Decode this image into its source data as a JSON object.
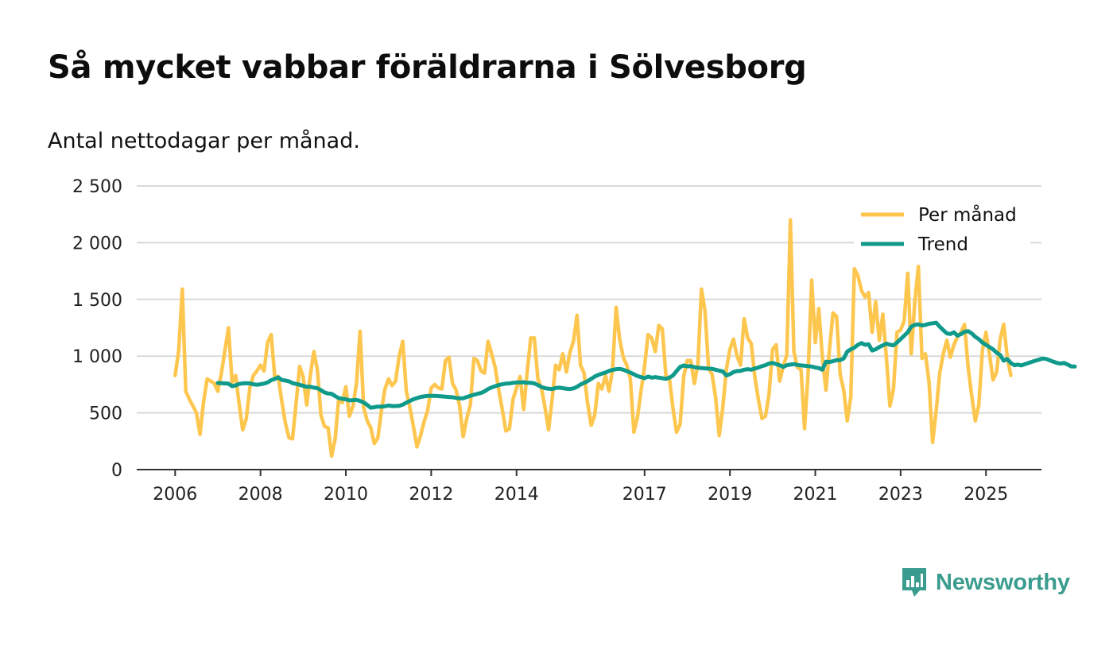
{
  "header": {
    "title": "Så mycket vabbar föräldrarna i Sölvesborg",
    "subtitle": "Antal nettodagar per månad."
  },
  "brand": {
    "name": "Newsworthy",
    "icon": "newsworthy-logo-icon",
    "color": "#3a9c8e"
  },
  "chart_data": {
    "type": "line",
    "title": "Så mycket vabbar föräldrarna i Sölvesborg",
    "subtitle": "Antal nettodagar per månad.",
    "xlabel": "",
    "ylabel": "",
    "x_start": 2006.0,
    "x_step": 0.08333,
    "xlim": [
      2005.1,
      2026.3
    ],
    "ylim": [
      0,
      2500
    ],
    "y_ticks": [
      0,
      500,
      1000,
      1500,
      2000,
      2500
    ],
    "y_tick_labels": [
      "0",
      "500",
      "1 000",
      "1 500",
      "2 000",
      "2 500"
    ],
    "x_ticks": [
      2006,
      2008,
      2010,
      2012,
      2014,
      2017,
      2019,
      2021,
      2023,
      2025
    ],
    "x_tick_labels": [
      "2006",
      "2008",
      "2010",
      "2012",
      "2014",
      "2017",
      "2019",
      "2021",
      "2023",
      "2025"
    ],
    "grid": true,
    "legend_position": "top-right",
    "series": [
      {
        "name": "Per månad",
        "color": "#fdc64e",
        "values": [
          830,
          1050,
          1590,
          690,
          620,
          560,
          500,
          310,
          600,
          800,
          780,
          760,
          690,
          850,
          1050,
          1250,
          770,
          830,
          580,
          350,
          450,
          720,
          830,
          870,
          920,
          870,
          1120,
          1190,
          820,
          820,
          600,
          410,
          280,
          270,
          580,
          910,
          820,
          570,
          830,
          1040,
          880,
          480,
          380,
          370,
          120,
          270,
          630,
          590,
          730,
          470,
          560,
          760,
          1220,
          550,
          430,
          370,
          230,
          280,
          520,
          710,
          800,
          740,
          780,
          1000,
          1130,
          690,
          550,
          380,
          200,
          300,
          420,
          520,
          720,
          750,
          720,
          710,
          960,
          990,
          760,
          700,
          560,
          290,
          450,
          570,
          980,
          960,
          870,
          850,
          1130,
          1020,
          900,
          700,
          530,
          340,
          360,
          620,
          720,
          820,
          530,
          860,
          1160,
          1160,
          800,
          720,
          550,
          350,
          620,
          920,
          880,
          1020,
          860,
          1030,
          1130,
          1360,
          920,
          850,
          580,
          390,
          480,
          760,
          710,
          830,
          690,
          880,
          1430,
          1150,
          990,
          920,
          800,
          330,
          460,
          690,
          910,
          1190,
          1160,
          1040,
          1270,
          1240,
          830,
          800,
          540,
          330,
          400,
          820,
          960,
          960,
          760,
          930,
          1590,
          1400,
          890,
          840,
          630,
          300,
          550,
          880,
          1060,
          1150,
          1000,
          920,
          1330,
          1160,
          1110,
          820,
          620,
          450,
          470,
          660,
          1060,
          1100,
          780,
          910,
          1010,
          2200,
          1040,
          900,
          880,
          360,
          850,
          1670,
          1120,
          1420,
          990,
          700,
          1060,
          1380,
          1350,
          840,
          700,
          430,
          640,
          1770,
          1710,
          1580,
          1520,
          1560,
          1210,
          1480,
          1140,
          1370,
          990,
          560,
          710,
          1210,
          1230,
          1310,
          1730,
          1020,
          1480,
          1790,
          980,
          1020,
          770,
          240,
          520,
          850,
          1020,
          1140,
          990,
          1100,
          1170,
          1210,
          1280,
          900,
          650,
          430,
          570,
          1050,
          1210,
          1020,
          790,
          860,
          1150,
          1280,
          990,
          830
        ]
      },
      {
        "name": "Trend",
        "color": "#0f9a8b",
        "start_index": 12,
        "values": [
          763,
          762,
          760,
          757,
          735,
          742,
          755,
          760,
          762,
          760,
          752,
          748,
          752,
          758,
          768,
          788,
          800,
          812,
          790,
          785,
          778,
          762,
          755,
          748,
          738,
          730,
          730,
          722,
          718,
          700,
          680,
          670,
          668,
          648,
          630,
          625,
          620,
          610,
          612,
          615,
          605,
          592,
          570,
          545,
          550,
          555,
          555,
          558,
          565,
          560,
          560,
          562,
          572,
          590,
          605,
          620,
          630,
          640,
          645,
          650,
          650,
          650,
          648,
          645,
          642,
          640,
          638,
          632,
          628,
          628,
          640,
          650,
          660,
          668,
          675,
          690,
          710,
          725,
          735,
          745,
          752,
          758,
          760,
          765,
          768,
          768,
          770,
          765,
          765,
          760,
          745,
          728,
          718,
          712,
          710,
          720,
          722,
          718,
          712,
          710,
          716,
          730,
          750,
          765,
          780,
          800,
          820,
          835,
          845,
          855,
          870,
          878,
          885,
          888,
          880,
          868,
          855,
          840,
          825,
          815,
          805,
          820,
          810,
          815,
          810,
          805,
          800,
          810,
          830,
          868,
          905,
          918,
          910,
          912,
          903,
          898,
          895,
          892,
          890,
          888,
          880,
          872,
          865,
          830,
          840,
          860,
          868,
          870,
          880,
          885,
          880,
          890,
          900,
          912,
          920,
          935,
          940,
          930,
          920,
          905,
          920,
          925,
          930,
          922,
          918,
          915,
          912,
          908,
          900,
          895,
          880,
          950,
          948,
          955,
          965,
          965,
          980,
          1040,
          1060,
          1075,
          1100,
          1115,
          1100,
          1105,
          1050,
          1060,
          1080,
          1095,
          1110,
          1100,
          1095,
          1120,
          1150,
          1180,
          1210,
          1260,
          1275,
          1280,
          1270,
          1275,
          1285,
          1290,
          1295,
          1260,
          1230,
          1200,
          1195,
          1210,
          1180,
          1195,
          1215,
          1220,
          1200,
          1170,
          1150,
          1120,
          1100,
          1080,
          1060,
          1030,
          1010,
          960,
          975,
          940,
          920,
          925,
          918,
          930,
          940,
          950,
          960,
          970,
          980,
          975,
          962,
          950,
          940,
          935,
          940,
          925,
          910,
          908
        ]
      }
    ]
  }
}
